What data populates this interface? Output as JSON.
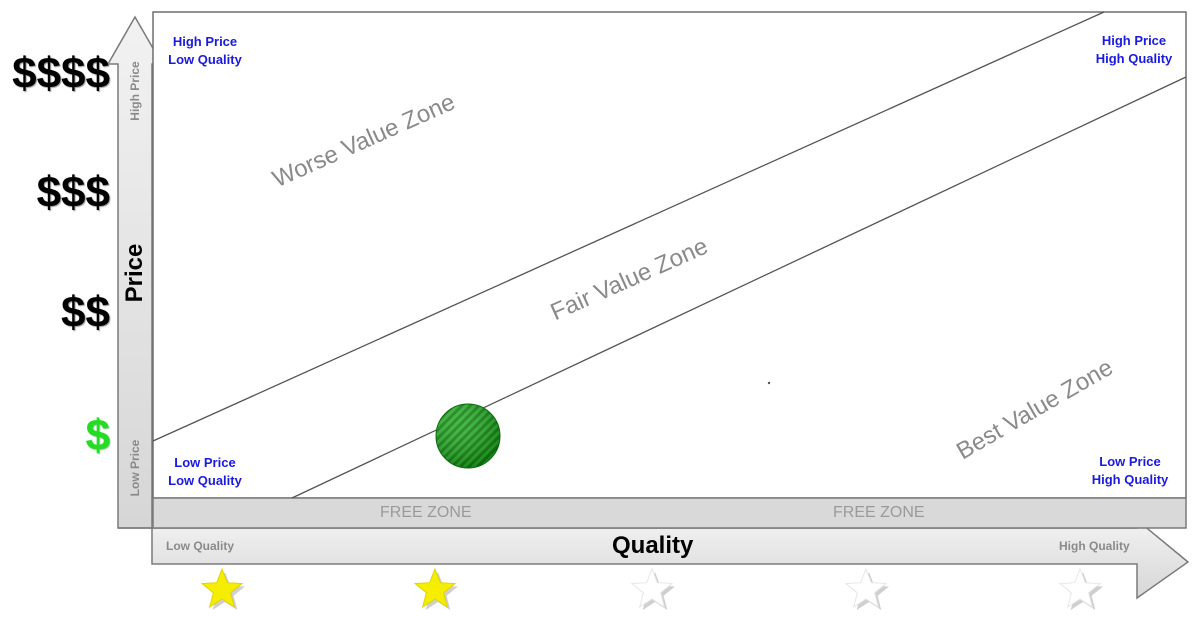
{
  "axes": {
    "y_title": "Price",
    "x_title": "Quality",
    "y_low": "Low Price",
    "y_high": "High Price",
    "x_low": "Low Quality",
    "x_high": "High Quality"
  },
  "price_levels": [
    "$$$$",
    "$$$",
    "$$",
    "$"
  ],
  "corners": {
    "top_left": [
      "High Price",
      "Low Quality"
    ],
    "top_right": [
      "High Price",
      "High Quality"
    ],
    "bottom_left": [
      "Low Price",
      "Low Quality"
    ],
    "bottom_right": [
      "Low Price",
      "High Quality"
    ]
  },
  "zones": {
    "worse": "Worse Value Zone",
    "fair": "Fair Value Zone",
    "best": "Best Value Zone",
    "free_left": "FREE ZONE",
    "free_right": "FREE ZONE"
  },
  "rating": {
    "filled": 2,
    "total": 5
  },
  "colors": {
    "star_filled": "#f5ee00",
    "star_empty": "#ffffff",
    "marker": "#1faa1f",
    "corner_text": "#1a1ae0",
    "zone_text": "#8a8a8a",
    "cheap_dollar": "#22dd22"
  }
}
